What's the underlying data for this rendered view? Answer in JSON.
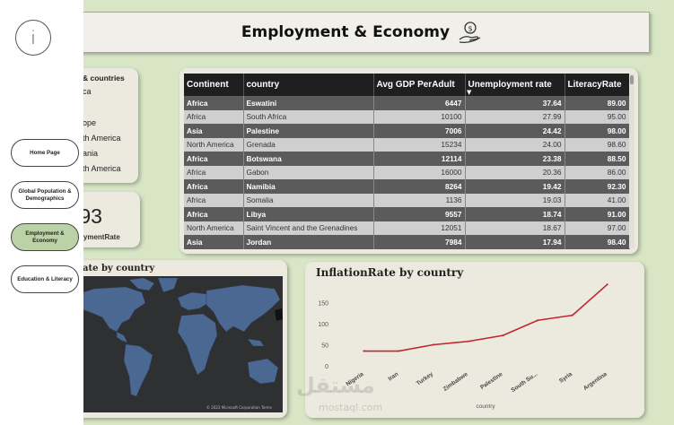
{
  "header": {
    "title": "Employment & Economy",
    "icon": "money-hand-icon"
  },
  "sidebar": {
    "info_icon": "i",
    "buttons": [
      {
        "label": "Home Page",
        "active": false
      },
      {
        "label": "Global Population & Demographics",
        "active": false
      },
      {
        "label": "Employment & Economy",
        "active": true
      },
      {
        "label": "Education & Literacy",
        "active": false
      }
    ]
  },
  "filter": {
    "title": "& countries",
    "items": [
      "ca",
      "ope",
      "th America",
      "ania",
      "th America"
    ]
  },
  "kpi": {
    "value": ".93",
    "label": "oymentRate"
  },
  "table": {
    "columns": [
      "Continent",
      "country",
      "Avg GDP PerAdult",
      "Unemployment rate",
      "LiteracyRate"
    ],
    "sort_indicator": "▼",
    "rows": [
      [
        "Africa",
        "Eswatini",
        "6447",
        "37.64",
        "89.00"
      ],
      [
        "Africa",
        "South Africa",
        "10100",
        "27.99",
        "95.00"
      ],
      [
        "Asia",
        "Palestine",
        "7006",
        "24.42",
        "98.00"
      ],
      [
        "North America",
        "Grenada",
        "15234",
        "24.00",
        "98.60"
      ],
      [
        "Africa",
        "Botswana",
        "12114",
        "23.38",
        "88.50"
      ],
      [
        "Africa",
        "Gabon",
        "16000",
        "20.36",
        "86.00"
      ],
      [
        "Africa",
        "Namibia",
        "8264",
        "19.42",
        "92.30"
      ],
      [
        "Africa",
        "Somalia",
        "1136",
        "19.03",
        "41.00"
      ],
      [
        "Africa",
        "Libya",
        "9557",
        "18.74",
        "91.00"
      ],
      [
        "North America",
        "Saint Vincent and the Grenadines",
        "12051",
        "18.67",
        "97.00"
      ],
      [
        "Asia",
        "Jordan",
        "7984",
        "17.94",
        "98.40"
      ]
    ]
  },
  "map": {
    "title": "ate by country",
    "credit": "© 2023 Microsoft Corporation Terms"
  },
  "chart_data": {
    "type": "line",
    "title": "InflationRate by country",
    "xlabel": "country",
    "ylabel": "",
    "categories": [
      "Nigeria",
      "Iran",
      "Turkey",
      "Zimbabwe",
      "Palestine",
      "South Su...",
      "Syria",
      "Argentina"
    ],
    "series": [
      {
        "name": "InflationRate",
        "values": [
          35,
          35,
          50,
          58,
          72,
          108,
          120,
          193
        ]
      }
    ],
    "yticks": [
      "0",
      "50",
      "100",
      "150"
    ],
    "ylim": [
      0,
      200
    ],
    "color": "#c0262c"
  },
  "watermark": {
    "text": "مستقل",
    "sub": "mostaql.com"
  }
}
